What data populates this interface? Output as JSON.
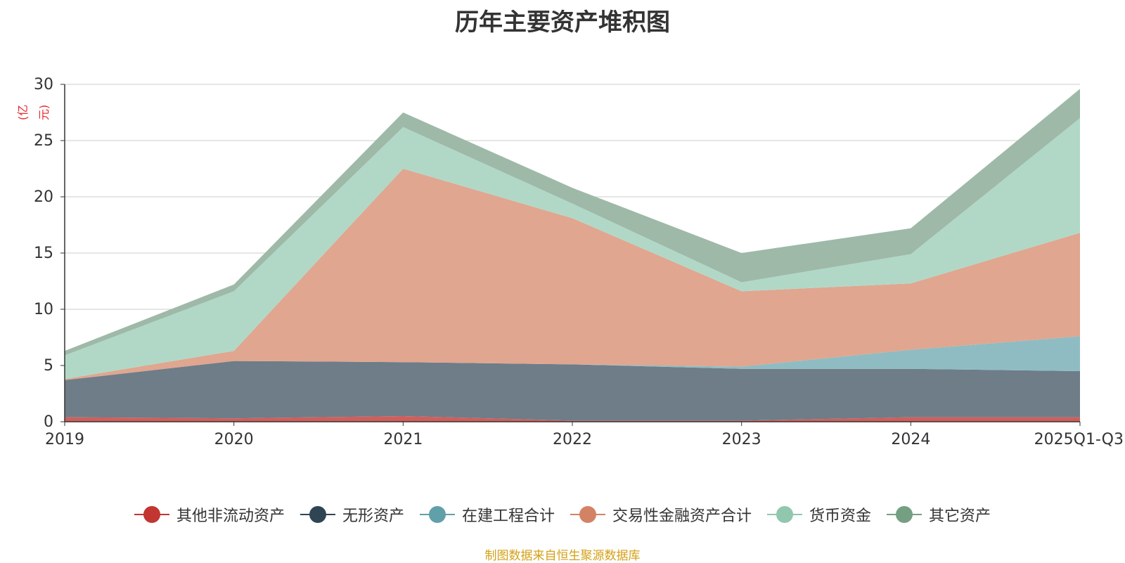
{
  "chart_data": {
    "type": "area",
    "title": "历年主要资产堆积图",
    "ylabel": "(亿元)",
    "ylim": [
      0,
      30
    ],
    "yticks": [
      0,
      5,
      10,
      15,
      20,
      25,
      30
    ],
    "categories": [
      "2019",
      "2020",
      "2021",
      "2022",
      "2023",
      "2024",
      "2025Q1-Q3"
    ],
    "stacked": true,
    "grid": true,
    "legend_position": "bottom",
    "series": [
      {
        "name": "其他非流动资产",
        "color": "#c23531",
        "fill": "#d15e5b",
        "values": [
          0.4,
          0.3,
          0.5,
          0.1,
          0.1,
          0.4,
          0.4
        ]
      },
      {
        "name": "无形资产",
        "color": "#2f4554",
        "fill": "#6e7d88",
        "values": [
          3.3,
          5.1,
          4.8,
          5.0,
          4.6,
          4.3,
          4.1
        ]
      },
      {
        "name": "在建工程合计",
        "color": "#61a0a8",
        "fill": "#8fbcc2",
        "values": [
          0.0,
          0.0,
          0.0,
          0.0,
          0.2,
          1.7,
          3.1
        ]
      },
      {
        "name": "交易性金融资产合计",
        "color": "#d48265",
        "fill": "#e0a690",
        "values": [
          0.1,
          0.9,
          17.2,
          13.0,
          6.7,
          5.9,
          9.2
        ]
      },
      {
        "name": "货币资金",
        "color": "#91c7ae",
        "fill": "#b1d8c6",
        "values": [
          2.1,
          5.3,
          3.7,
          1.3,
          0.8,
          2.6,
          10.2
        ]
      },
      {
        "name": "其它资产",
        "color": "#749f83",
        "fill": "#9eb9a8",
        "values": [
          0.4,
          0.6,
          1.3,
          1.4,
          2.6,
          2.3,
          2.6
        ]
      }
    ]
  },
  "source_note": "制图数据来自恒生聚源数据库"
}
